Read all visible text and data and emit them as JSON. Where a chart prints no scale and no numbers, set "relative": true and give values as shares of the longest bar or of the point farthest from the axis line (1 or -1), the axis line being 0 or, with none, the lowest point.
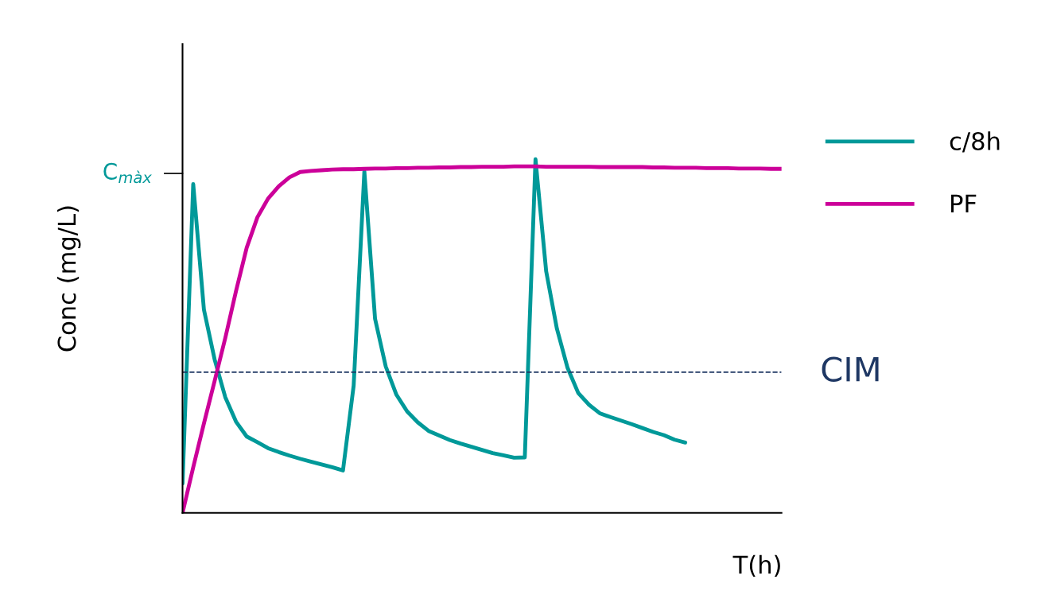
{
  "chart_data": {
    "type": "line",
    "relative": true,
    "xlabel": "T(h)",
    "ylabel": "Conc (mg/L)",
    "grid": false,
    "legend": "right",
    "marker": "none",
    "line_style": "solid",
    "categories": [
      null,
      null,
      null,
      null,
      null,
      null,
      null,
      null,
      null,
      null,
      null,
      null,
      null,
      null,
      null,
      null,
      null,
      null,
      null,
      null,
      null,
      null,
      null,
      null,
      null,
      null,
      null,
      null,
      null,
      null,
      null,
      null,
      null,
      null,
      null,
      null,
      null,
      null,
      null,
      null,
      null,
      null,
      null,
      null,
      null,
      null,
      null,
      null,
      null,
      null,
      null,
      null,
      null,
      null,
      null,
      null,
      null
    ],
    "annotations": [
      "C$_{màx}$"
    ],
    "series": [
      {
        "name": "c/8h",
        "color": "#009999",
        "values": [
          0.083,
          0.93,
          0.575,
          0.434,
          0.327,
          0.258,
          0.216,
          0.2,
          0.183,
          0.172,
          0.162,
          0.153,
          0.145,
          0.137,
          0.129,
          0.12,
          0.36,
          0.966,
          0.549,
          0.414,
          0.334,
          0.287,
          0.256,
          0.232,
          0.219,
          0.206,
          0.196,
          0.187,
          0.178,
          0.169,
          0.163,
          0.156,
          0.157,
          1.0,
          0.683,
          0.521,
          0.41,
          0.339,
          0.306,
          0.282,
          0.271,
          0.261,
          0.251,
          0.24,
          0.229,
          0.22,
          0.207,
          0.199,
          null,
          null,
          null,
          null,
          null,
          null,
          null,
          null,
          null
        ]
      },
      {
        "name": "PF",
        "color": "#cc0099",
        "values": [
          0,
          0.129,
          0.253,
          0.373,
          0.495,
          0.627,
          0.75,
          0.836,
          0.889,
          0.924,
          0.949,
          0.964,
          0.967,
          0.969,
          0.971,
          0.972,
          0.972,
          0.973,
          0.974,
          0.974,
          0.975,
          0.975,
          0.976,
          0.976,
          0.977,
          0.977,
          0.978,
          0.978,
          0.979,
          0.979,
          0.979,
          0.98,
          0.98,
          0.98,
          0.979,
          0.979,
          0.979,
          0.979,
          0.979,
          0.978,
          0.978,
          0.978,
          0.978,
          0.978,
          0.977,
          0.977,
          0.976,
          0.976,
          0.976,
          0.975,
          0.975,
          0.975,
          0.974,
          0.974,
          0.974,
          0.973,
          0.973
        ]
      }
    ],
    "ref_lines": [
      {
        "axis": "y",
        "value": 0.398,
        "label": "CIM",
        "color": "#1f3864",
        "line_style": "dashed"
      }
    ]
  }
}
